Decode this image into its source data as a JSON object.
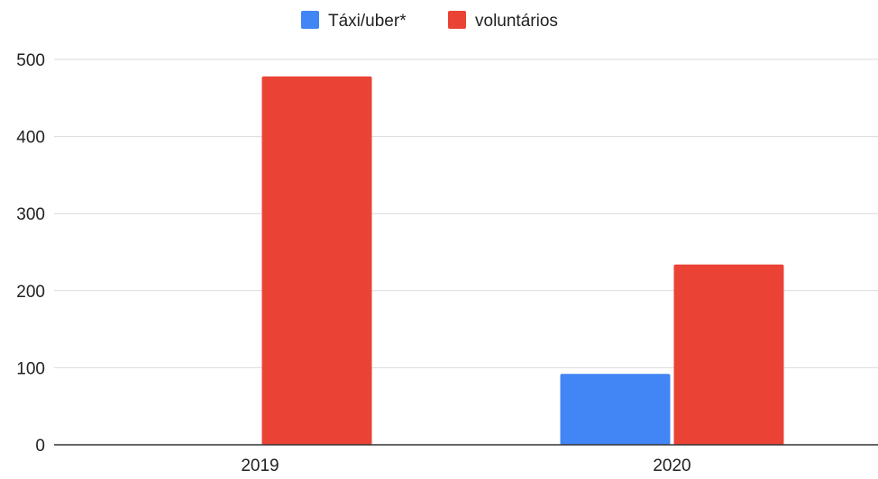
{
  "chart_data": {
    "type": "bar",
    "categories": [
      "2019",
      "2020"
    ],
    "series": [
      {
        "name": "Táxi/uber*",
        "color": "#4285f4",
        "values": [
          0,
          92
        ]
      },
      {
        "name": "voluntários",
        "color": "#ea4335",
        "values": [
          478,
          234
        ]
      }
    ],
    "yticks": [
      0,
      100,
      200,
      300,
      400,
      500
    ],
    "ylim": [
      0,
      500
    ],
    "legend_position": "top-center",
    "grid": true,
    "title": "",
    "xlabel": "",
    "ylabel": ""
  }
}
